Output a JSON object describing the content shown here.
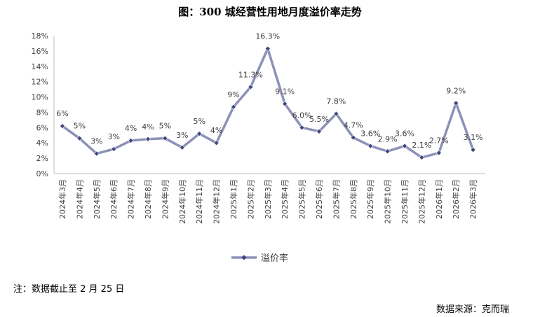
{
  "chart_data": {
    "type": "line",
    "title": "图：300 城经营性用地月度溢价率走势",
    "categories": [
      "2024年3月",
      "2024年4月",
      "2024年5月",
      "2024年6月",
      "2024年7月",
      "2024年8月",
      "2024年9月",
      "2024年10月",
      "2024年11月",
      "2024年12月",
      "2025年1月",
      "2025年2月",
      "2025年3月",
      "2025年4月",
      "2025年5月",
      "2025年6月",
      "2025年7月",
      "2025年8月",
      "2025年9月",
      "2025年10月",
      "2025年11月",
      "2025年12月",
      "2026年1月",
      "2026年2月",
      "2026年3月"
    ],
    "series": [
      {
        "name": "溢价率",
        "values": [
          6.2,
          4.6,
          2.6,
          3.2,
          4.3,
          4.5,
          4.6,
          3.4,
          5.2,
          4.0,
          8.7,
          11.3,
          16.3,
          9.1,
          6.0,
          5.5,
          7.8,
          4.7,
          3.6,
          2.9,
          3.6,
          2.1,
          2.7,
          9.2,
          3.1
        ],
        "labels": [
          "6%",
          "5%",
          "3%",
          "3%",
          "4%",
          "4%",
          "5%",
          "3%",
          "5%",
          "4%",
          "9%",
          "11.3%",
          "16.3%",
          "9.1%",
          "6.0%",
          "5.5%",
          "7.8%",
          "4.7%",
          "3.6%",
          "2.9%",
          "3.6%",
          "2.1%",
          "2.7%",
          "9.2%",
          "3.1%"
        ]
      }
    ],
    "ylim": [
      0,
      18
    ],
    "yticks": [
      "0%",
      "2%",
      "4%",
      "6%",
      "8%",
      "10%",
      "12%",
      "14%",
      "16%",
      "18%"
    ],
    "xlabel": "",
    "ylabel": "",
    "legend_position": "bottom",
    "grid": false,
    "line_color": "#8d91b8",
    "marker_color": "#3f4680"
  },
  "footnote": "注：数据截止至 2 月 25 日",
  "source": "数据来源：克而瑞"
}
